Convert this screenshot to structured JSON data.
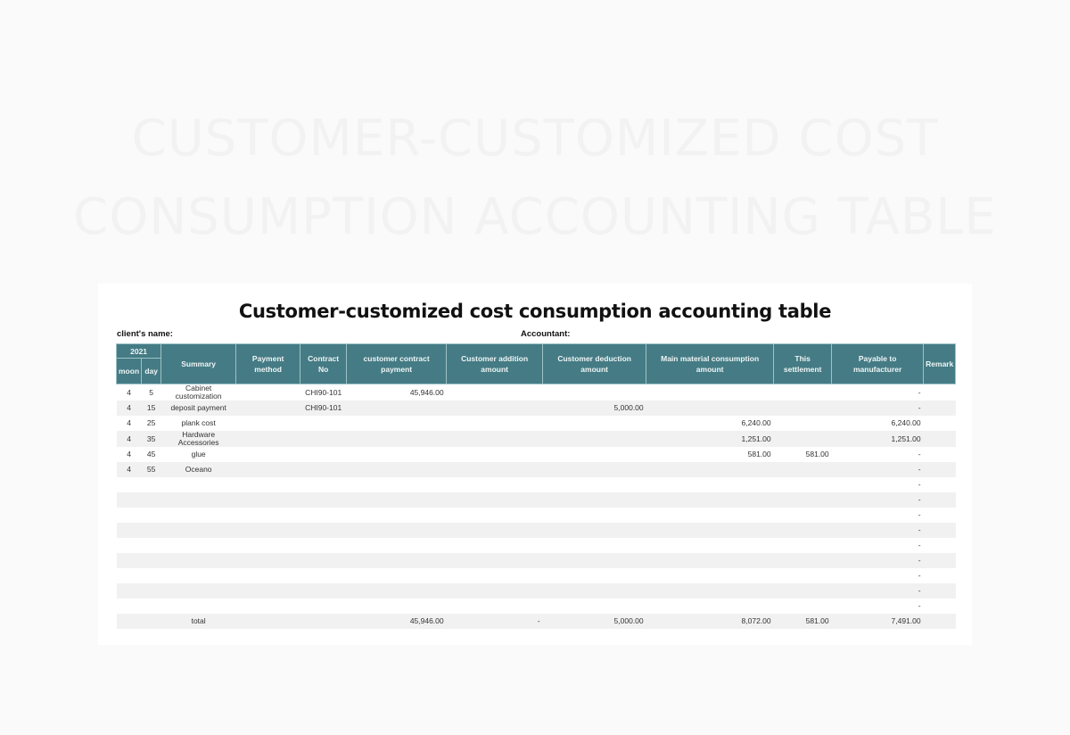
{
  "background_title": [
    "CUSTOMER-CUSTOMIZED COST",
    "CONSUMPTION ACCOUNTING TABLE"
  ],
  "sheet": {
    "title": "Customer-customized cost consumption accounting table",
    "client_label": "client's name:",
    "accountant_label": "Accountant:"
  },
  "table": {
    "header": {
      "year": "2021",
      "moon": "moon",
      "day": "day",
      "summary": "Summary",
      "payment_method": [
        "Payment",
        "method"
      ],
      "contract_no": [
        "Contract",
        "No"
      ],
      "customer_contract_payment": [
        "customer contract",
        "payment"
      ],
      "customer_addition_amount": [
        "Customer addition",
        "amount"
      ],
      "customer_deduction_amount": [
        "Customer deduction",
        "amount"
      ],
      "main_material_consumption_amount": [
        "Main material consumption",
        "amount"
      ],
      "this_settlement": [
        "This",
        "settlement"
      ],
      "payable_to_manufacturer": [
        "Payable to",
        "manufacturer"
      ],
      "remark": "Remark"
    },
    "rows": [
      {
        "moon": "4",
        "day": "5",
        "summary": "Cabinet customization",
        "payment_method": "",
        "contract_no": "CHI90-101",
        "contract_payment": "45,946.00",
        "addition": "",
        "deduction": "",
        "main_material": "",
        "settlement": "",
        "payable": "-",
        "remark": ""
      },
      {
        "moon": "4",
        "day": "15",
        "summary": "deposit payment",
        "payment_method": "",
        "contract_no": "CHI90-101",
        "contract_payment": "",
        "addition": "",
        "deduction": "5,000.00",
        "main_material": "",
        "settlement": "",
        "payable": "-",
        "remark": ""
      },
      {
        "moon": "4",
        "day": "25",
        "summary": "plank cost",
        "payment_method": "",
        "contract_no": "",
        "contract_payment": "",
        "addition": "",
        "deduction": "",
        "main_material": "6,240.00",
        "settlement": "",
        "payable": "6,240.00",
        "remark": ""
      },
      {
        "moon": "4",
        "day": "35",
        "summary": "Hardware Accessories",
        "payment_method": "",
        "contract_no": "",
        "contract_payment": "",
        "addition": "",
        "deduction": "",
        "main_material": "1,251.00",
        "settlement": "",
        "payable": "1,251.00",
        "remark": ""
      },
      {
        "moon": "4",
        "day": "45",
        "summary": "glue",
        "payment_method": "",
        "contract_no": "",
        "contract_payment": "",
        "addition": "",
        "deduction": "",
        "main_material": "581.00",
        "settlement": "581.00",
        "payable": "-",
        "remark": ""
      },
      {
        "moon": "4",
        "day": "55",
        "summary": "Oceano",
        "payment_method": "",
        "contract_no": "",
        "contract_payment": "",
        "addition": "",
        "deduction": "",
        "main_material": "",
        "settlement": "",
        "payable": "-",
        "remark": ""
      },
      {
        "moon": "",
        "day": "",
        "summary": "",
        "payment_method": "",
        "contract_no": "",
        "contract_payment": "",
        "addition": "",
        "deduction": "",
        "main_material": "",
        "settlement": "",
        "payable": "-",
        "remark": ""
      },
      {
        "moon": "",
        "day": "",
        "summary": "",
        "payment_method": "",
        "contract_no": "",
        "contract_payment": "",
        "addition": "",
        "deduction": "",
        "main_material": "",
        "settlement": "",
        "payable": "-",
        "remark": ""
      },
      {
        "moon": "",
        "day": "",
        "summary": "",
        "payment_method": "",
        "contract_no": "",
        "contract_payment": "",
        "addition": "",
        "deduction": "",
        "main_material": "",
        "settlement": "",
        "payable": "-",
        "remark": ""
      },
      {
        "moon": "",
        "day": "",
        "summary": "",
        "payment_method": "",
        "contract_no": "",
        "contract_payment": "",
        "addition": "",
        "deduction": "",
        "main_material": "",
        "settlement": "",
        "payable": "-",
        "remark": ""
      },
      {
        "moon": "",
        "day": "",
        "summary": "",
        "payment_method": "",
        "contract_no": "",
        "contract_payment": "",
        "addition": "",
        "deduction": "",
        "main_material": "",
        "settlement": "",
        "payable": "-",
        "remark": ""
      },
      {
        "moon": "",
        "day": "",
        "summary": "",
        "payment_method": "",
        "contract_no": "",
        "contract_payment": "",
        "addition": "",
        "deduction": "",
        "main_material": "",
        "settlement": "",
        "payable": "-",
        "remark": ""
      },
      {
        "moon": "",
        "day": "",
        "summary": "",
        "payment_method": "",
        "contract_no": "",
        "contract_payment": "",
        "addition": "",
        "deduction": "",
        "main_material": "",
        "settlement": "",
        "payable": "-",
        "remark": ""
      },
      {
        "moon": "",
        "day": "",
        "summary": "",
        "payment_method": "",
        "contract_no": "",
        "contract_payment": "",
        "addition": "",
        "deduction": "",
        "main_material": "",
        "settlement": "",
        "payable": "-",
        "remark": ""
      },
      {
        "moon": "",
        "day": "",
        "summary": "",
        "payment_method": "",
        "contract_no": "",
        "contract_payment": "",
        "addition": "",
        "deduction": "",
        "main_material": "",
        "settlement": "",
        "payable": "-",
        "remark": ""
      }
    ],
    "total": {
      "label": "total",
      "contract_payment": "45,946.00",
      "addition": "-",
      "deduction": "5,000.00",
      "main_material": "8,072.00",
      "settlement": "581.00",
      "payable": "7,491.00",
      "remark": ""
    }
  },
  "colors": {
    "header_bg": "#457b84",
    "header_border": "#9cc3c8",
    "row_alt": "#f1f1f1"
  }
}
